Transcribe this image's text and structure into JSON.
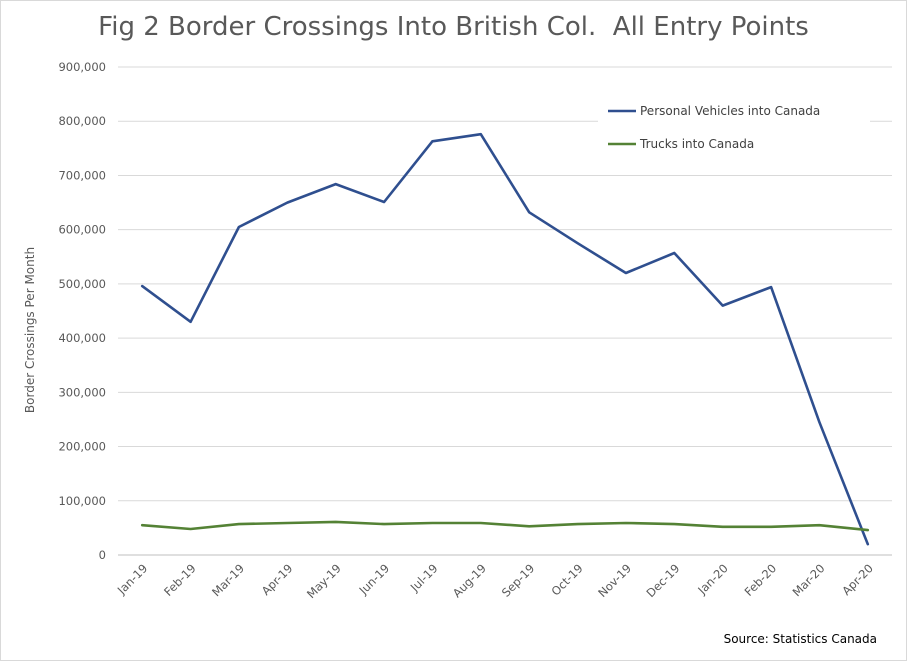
{
  "chart_data": {
    "type": "line",
    "title": "Fig 2 Border Crossings Into British Col.  All Entry Points",
    "ylabel": "Border Crossings Per Month",
    "xlabel": "",
    "ylim": [
      0,
      900000
    ],
    "ytick_step": 100000,
    "grid": true,
    "legend_position": "top-right",
    "categories": [
      "Jan-19",
      "Feb-19",
      "Mar-19",
      "Apr-19",
      "May-19",
      "Jun-19",
      "Jul-19",
      "Aug-19",
      "Sep-19",
      "Oct-19",
      "Nov-19",
      "Dec-19",
      "Jan-20",
      "Feb-20",
      "Mar-20",
      "Apr-20"
    ],
    "yticks": [
      "0",
      "100,000",
      "200,000",
      "300,000",
      "400,000",
      "500,000",
      "600,000",
      "700,000",
      "800,000",
      "900,000"
    ],
    "series": [
      {
        "name": "Personal Vehicles into Canada",
        "color": "#2f4f8f",
        "values": [
          496000,
          430000,
          605000,
          650000,
          684000,
          651000,
          763000,
          776000,
          632000,
          575000,
          520000,
          557000,
          460000,
          494000,
          245000,
          20000
        ]
      },
      {
        "name": "Trucks into Canada",
        "color": "#548235",
        "values": [
          55000,
          48000,
          57000,
          59000,
          61000,
          57000,
          59000,
          59000,
          53000,
          57000,
          59000,
          57000,
          52000,
          52000,
          55000,
          46000
        ]
      }
    ],
    "source": "Source: Statistics Canada"
  }
}
